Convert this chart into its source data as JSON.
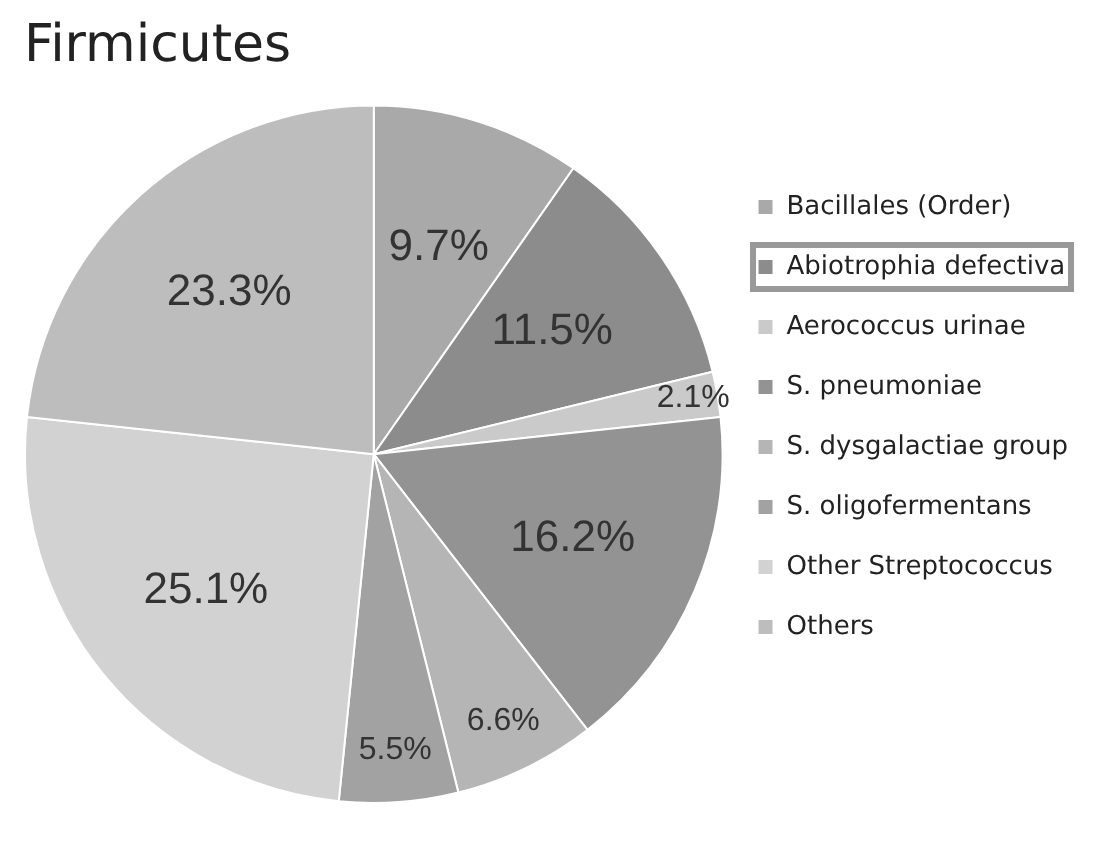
{
  "chart_data": {
    "type": "pie",
    "title": "Firmicutes",
    "categories": [
      "Bacillales (Order)",
      "Abiotrophia defectiva",
      "Aerococcus urinae",
      "S. pneumoniae",
      "S. dysgalactiae group",
      "S. oligofermentans",
      "Other Streptococcus",
      "Others"
    ],
    "values": [
      9.7,
      11.5,
      2.1,
      16.2,
      6.6,
      5.5,
      25.1,
      23.3
    ],
    "colors": [
      "#a9a9a9",
      "#8c8c8c",
      "#cacaca",
      "#939393",
      "#b5b5b5",
      "#a2a2a2",
      "#d2d2d2",
      "#bdbdbd"
    ],
    "value_labels": [
      "9.7%",
      "11.5%",
      "2.1%",
      "16.2%",
      "6.6%",
      "5.5%",
      "25.1%",
      "23.3%"
    ],
    "legend": "right"
  }
}
